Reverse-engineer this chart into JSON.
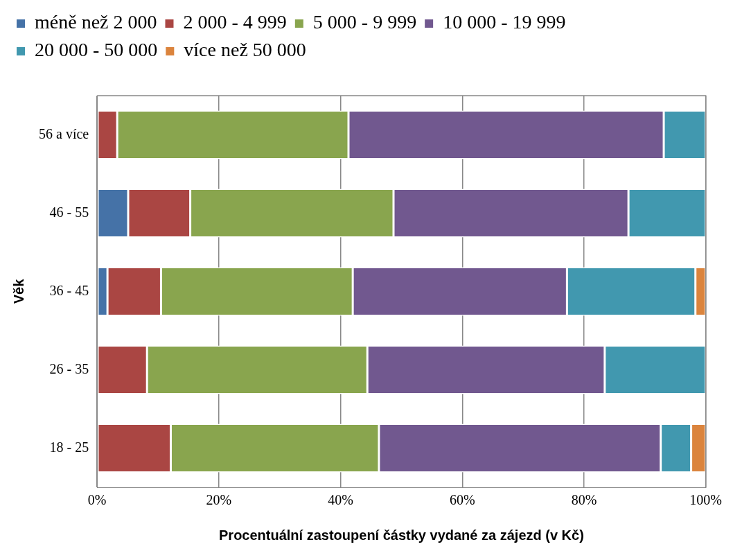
{
  "chart_data": {
    "type": "bar",
    "orientation": "horizontal",
    "stacked": true,
    "xlabel": "Procentuální zastoupení částky vydané za zájezd (v Kč)",
    "ylabel": "Věk",
    "categories": [
      "56 a více",
      "46 - 55",
      "36 - 45",
      "26 - 35",
      "18 - 25"
    ],
    "series": [
      {
        "name": "méně než 2 000",
        "color": "#4572a7",
        "values": [
          0,
          5.1,
          1.7,
          0,
          0
        ]
      },
      {
        "name": "2 000 - 4 999",
        "color": "#aa4643",
        "values": [
          3.3,
          10.2,
          8.8,
          8.2,
          12.1
        ]
      },
      {
        "name": "5 000 - 9 999",
        "color": "#89a54e",
        "values": [
          38.0,
          33.4,
          31.5,
          36.2,
          34.2
        ]
      },
      {
        "name": "10 000 - 19 999",
        "color": "#71588f",
        "values": [
          51.8,
          38.6,
          35.2,
          39.0,
          46.3
        ]
      },
      {
        "name": "20 000 - 50 000",
        "color": "#4198af",
        "values": [
          6.9,
          12.7,
          21.1,
          16.6,
          5.0
        ]
      },
      {
        "name": "více než 50 000",
        "color": "#db843d",
        "values": [
          0,
          0,
          1.7,
          0,
          2.4
        ]
      }
    ],
    "xlim": [
      0,
      100
    ],
    "xticks": [
      {
        "value": 0,
        "label": "0%"
      },
      {
        "value": 20,
        "label": "20%"
      },
      {
        "value": 40,
        "label": "40%"
      },
      {
        "value": 60,
        "label": "60%"
      },
      {
        "value": 80,
        "label": "80%"
      },
      {
        "value": 100,
        "label": "100%"
      }
    ],
    "grid": "x",
    "legend": "top"
  }
}
